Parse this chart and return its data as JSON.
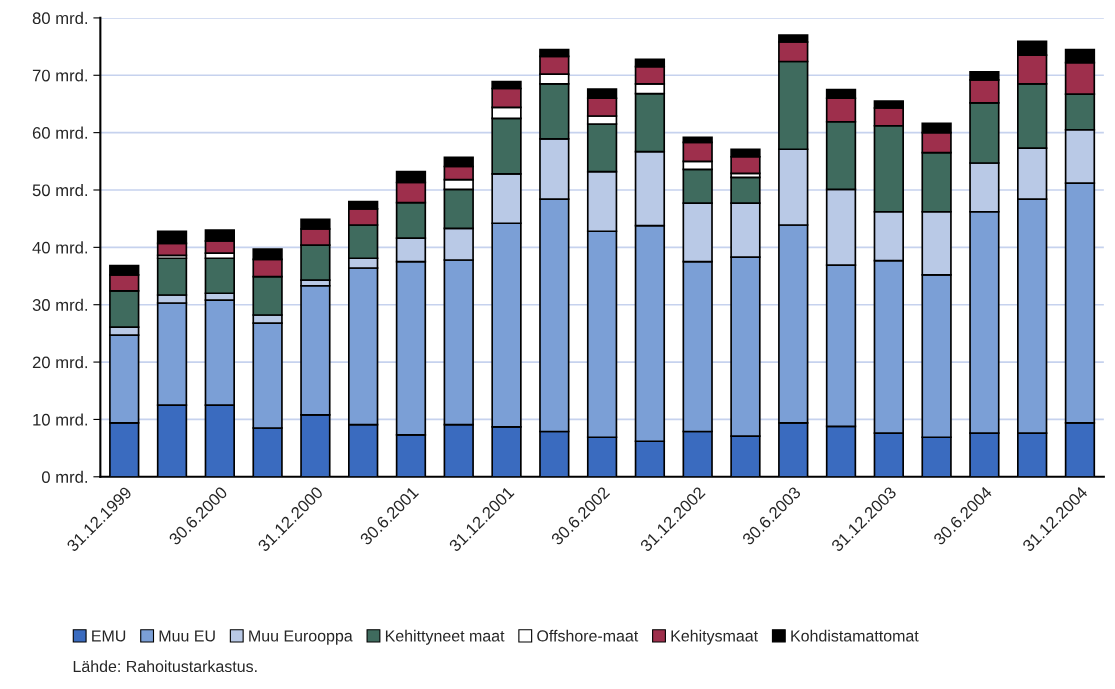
{
  "chart_data": {
    "type": "bar",
    "stacked": true,
    "categories": [
      "31.12.1999",
      null,
      "30.6.2000",
      null,
      "31.12.2000",
      null,
      "30.6.2001",
      null,
      "31.12.2001",
      null,
      "30.6.2002",
      null,
      "31.12.2002",
      null,
      "30.6.2003",
      null,
      "31.12.2003",
      null,
      "30.6.2004",
      null,
      "31.12.2004"
    ],
    "series": [
      {
        "name": "EMU",
        "color": "#3a6bbf",
        "values": [
          9.4,
          12.5,
          12.5,
          8.5,
          10.8,
          9.1,
          7.3,
          9.1,
          8.7,
          7.9,
          6.9,
          6.2,
          7.9,
          7.1,
          9.4,
          8.8,
          7.6,
          6.9,
          7.6,
          7.6,
          9.4
        ]
      },
      {
        "name": "Muu EU",
        "color": "#7b9fd6",
        "values": [
          15.3,
          17.8,
          18.3,
          18.3,
          22.5,
          27.3,
          30.2,
          28.7,
          35.5,
          40.5,
          35.9,
          37.6,
          29.6,
          31.2,
          34.5,
          28.1,
          30.1,
          28.3,
          38.6,
          40.8,
          41.8
        ]
      },
      {
        "name": "Muu Eurooppa",
        "color": "#b9c9e6",
        "values": [
          1.4,
          1.4,
          1.2,
          1.4,
          1.0,
          1.7,
          4.1,
          5.5,
          8.6,
          10.5,
          10.4,
          12.9,
          10.2,
          9.4,
          13.2,
          13.2,
          8.5,
          11.0,
          8.5,
          8.9,
          9.3
        ]
      },
      {
        "name": "Kehittyneet maat",
        "color": "#3f6b5e",
        "values": [
          6.3,
          6.4,
          6.1,
          6.7,
          6.1,
          5.8,
          6.2,
          6.8,
          9.7,
          9.6,
          8.3,
          10.1,
          5.9,
          4.5,
          15.3,
          11.8,
          15.0,
          10.3,
          10.5,
          11.2,
          6.2
        ]
      },
      {
        "name": "Offshore-maat",
        "color": "#ffffff",
        "values": [
          null,
          0.5,
          0.9,
          null,
          null,
          null,
          null,
          1.7,
          1.9,
          1.7,
          1.4,
          1.7,
          1.4,
          0.7,
          null,
          null,
          null,
          null,
          null,
          null,
          null
        ]
      },
      {
        "name": "Kehitysmaat",
        "color": "#9e2f4c",
        "values": [
          2.8,
          2.1,
          2.1,
          3.0,
          2.8,
          2.8,
          3.5,
          2.3,
          3.3,
          3.1,
          3.1,
          3.0,
          3.3,
          2.9,
          3.4,
          4.1,
          3.1,
          3.5,
          4.0,
          5.0,
          5.5
        ]
      },
      {
        "name": "Kohdistamattomat",
        "color": "#000000",
        "values": [
          1.6,
          2.1,
          1.9,
          1.8,
          1.7,
          1.3,
          1.9,
          1.6,
          1.2,
          1.2,
          1.6,
          1.3,
          0.9,
          1.3,
          1.2,
          1.5,
          1.2,
          1.6,
          1.4,
          2.4,
          2.3
        ]
      }
    ],
    "ylim": [
      0,
      80
    ],
    "yticks": [
      {
        "value": 0,
        "label": "0 mrd."
      },
      {
        "value": 10,
        "label": "10 mrd."
      },
      {
        "value": 20,
        "label": "20 mrd."
      },
      {
        "value": 30,
        "label": "30 mrd."
      },
      {
        "value": 40,
        "label": "40 mrd."
      },
      {
        "value": 50,
        "label": "50 mrd."
      },
      {
        "value": 60,
        "label": "60 mrd."
      },
      {
        "value": 70,
        "label": "70 mrd."
      },
      {
        "value": 80,
        "label": "80 mrd."
      }
    ],
    "grid": "y",
    "legend": "bottom",
    "annotations": [
      "Lähde: Rahoitustarkastus."
    ]
  }
}
